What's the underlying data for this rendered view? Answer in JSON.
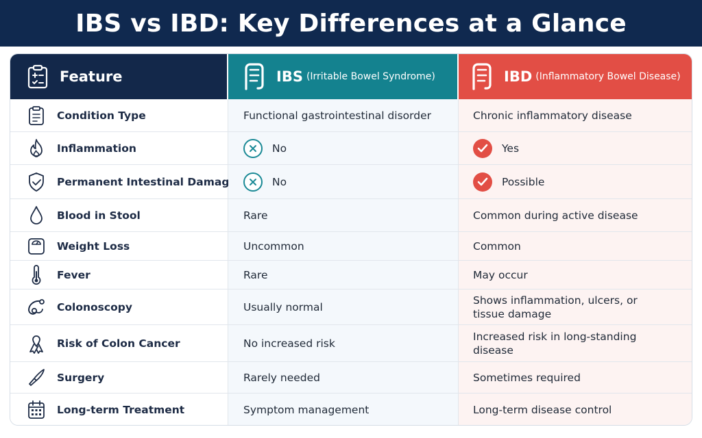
{
  "title": "IBS vs IBD: Key Differences at a Glance",
  "header": {
    "feature": {
      "title": "Feature",
      "icon": "clipboard-icon"
    },
    "ibs": {
      "title": "IBS",
      "subtitle": "(Irritable Bowel Syndrome)",
      "icon": "intestine-icon"
    },
    "ibd": {
      "title": "IBD",
      "subtitle": "(Inflammatory Bowel Disease)",
      "icon": "intestine-icon"
    }
  },
  "colors": {
    "banner": "#10294f",
    "feature_header": "#13284a",
    "ibs": "#14828f",
    "ibd": "#e24e45"
  },
  "rows": [
    {
      "feature": "Condition Type",
      "icon": "clipboard-icon",
      "ibs": "Functional gastrointestinal disorder",
      "ibd": "Chronic inflammatory disease"
    },
    {
      "feature": "Inflammation",
      "icon": "flame-icon",
      "ibs": "No",
      "ibs_mark": "x",
      "ibd": "Yes",
      "ibd_mark": "check"
    },
    {
      "feature": "Permanent Intestinal Damage",
      "icon": "shield-icon",
      "ibs": "No",
      "ibs_mark": "x",
      "ibd": "Possible",
      "ibd_mark": "check"
    },
    {
      "feature": "Blood in Stool",
      "icon": "drop-icon",
      "ibs": "Rare",
      "ibd": "Common during active disease"
    },
    {
      "feature": "Weight Loss",
      "icon": "scale-icon",
      "ibs": "Uncommon",
      "ibd": "Common"
    },
    {
      "feature": "Fever",
      "icon": "thermometer-icon",
      "ibs": "Rare",
      "ibd": "May occur"
    },
    {
      "feature": "Colonoscopy",
      "icon": "endoscope-icon",
      "ibs": "Usually normal",
      "ibd": "Shows inflammation, ulcers, or tissue damage"
    },
    {
      "feature": "Risk of Colon Cancer",
      "icon": "ribbon-icon",
      "ibs": "No increased risk",
      "ibd": "Increased risk in long-standing disease"
    },
    {
      "feature": "Surgery",
      "icon": "scalpel-icon",
      "ibs": "Rarely needed",
      "ibd": "Sometimes required"
    },
    {
      "feature": "Long-term Treatment",
      "icon": "calendar-icon",
      "ibs": "Symptom management",
      "ibd": "Long-term disease control"
    }
  ]
}
